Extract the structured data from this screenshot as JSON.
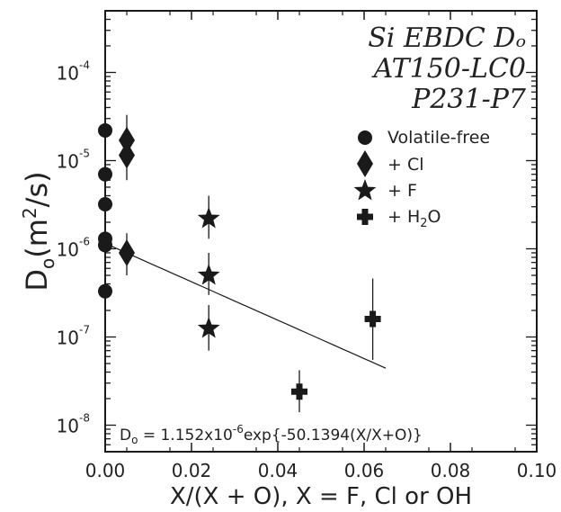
{
  "chart_data": {
    "type": "scatter",
    "title_lines": [
      "Si EBDC Dₒ",
      "AT150-LC0",
      "P231-P7"
    ],
    "xlabel": "X/(X + O), X = F, Cl or OH",
    "ylabel_base": "D",
    "ylabel_sub": "o",
    "ylabel_rest": "(m",
    "ylabel_sup": "2",
    "ylabel_tail": "/s)",
    "x_scale": "linear",
    "y_scale": "log",
    "xlim": [
      0.0,
      0.1
    ],
    "ylim": [
      5e-09,
      0.0005
    ],
    "x_ticks": [
      0.0,
      0.02,
      0.04,
      0.06,
      0.08,
      0.1
    ],
    "x_tick_labels": [
      "0.00",
      "0.02",
      "0.04",
      "0.06",
      "0.08",
      "0.10"
    ],
    "y_ticks": [
      1e-08,
      1e-07,
      1e-06,
      1e-05,
      0.0001
    ],
    "y_tick_labels": [
      {
        "base": "10",
        "exp": "-8"
      },
      {
        "base": "10",
        "exp": "-7"
      },
      {
        "base": "10",
        "exp": "-6"
      },
      {
        "base": "10",
        "exp": "-5"
      },
      {
        "base": "10",
        "exp": "-4"
      }
    ],
    "legend_position": "top-right",
    "series": [
      {
        "name": "Volatile-free",
        "marker": "circle",
        "legend_label": "Volatile-free",
        "points": [
          {
            "x": 0.0,
            "y": 2.2e-05
          },
          {
            "x": 0.0,
            "y": 7e-06
          },
          {
            "x": 0.0,
            "y": 3.2e-06
          },
          {
            "x": 0.0,
            "y": 1.3e-06
          },
          {
            "x": 0.0,
            "y": 1.1e-06
          },
          {
            "x": 0.0,
            "y": 3.3e-07
          }
        ]
      },
      {
        "name": "+ Cl",
        "marker": "diamond",
        "legend_label": "+ Cl",
        "points": [
          {
            "x": 0.005,
            "y": 1.7e-05,
            "err": [
              1e-05,
              3.3e-05
            ]
          },
          {
            "x": 0.005,
            "y": 1.15e-05,
            "err": [
              6e-06,
              2.4e-05
            ]
          },
          {
            "x": 0.005,
            "y": 9e-07,
            "err": [
              5e-07,
              1.5e-06
            ]
          }
        ]
      },
      {
        "name": "+ F",
        "marker": "star",
        "legend_label": "+ F",
        "points": [
          {
            "x": 0.024,
            "y": 2.2e-06,
            "err": [
              1.3e-06,
              4e-06
            ]
          },
          {
            "x": 0.024,
            "y": 5e-07,
            "err": [
              3e-07,
              9e-07
            ]
          },
          {
            "x": 0.024,
            "y": 1.25e-07,
            "err": [
              7e-08,
              2.3e-07
            ]
          }
        ]
      },
      {
        "name": "+ H2O",
        "marker": "plus",
        "legend_label_base": "+ H",
        "legend_label_sub": "2",
        "legend_label_tail": "O",
        "points": [
          {
            "x": 0.045,
            "y": 2.4e-08,
            "err": [
              1.4e-08,
              4.2e-08
            ]
          },
          {
            "x": 0.062,
            "y": 1.6e-07,
            "err": [
              5.5e-08,
              4.6e-07
            ]
          }
        ]
      }
    ],
    "fit_line": {
      "a": 1.152e-06,
      "b": -50.1394,
      "x_range": [
        0.0,
        0.065
      ],
      "equation": {
        "lhs_base": "D",
        "lhs_sub": "o",
        "mid": " = 1.152x10",
        "exp": "-6",
        "rhs": "exp{-50.1394(X/X+O)}"
      }
    },
    "colors": {
      "ink": "#1a1a1a",
      "background": "#ffffff"
    }
  }
}
